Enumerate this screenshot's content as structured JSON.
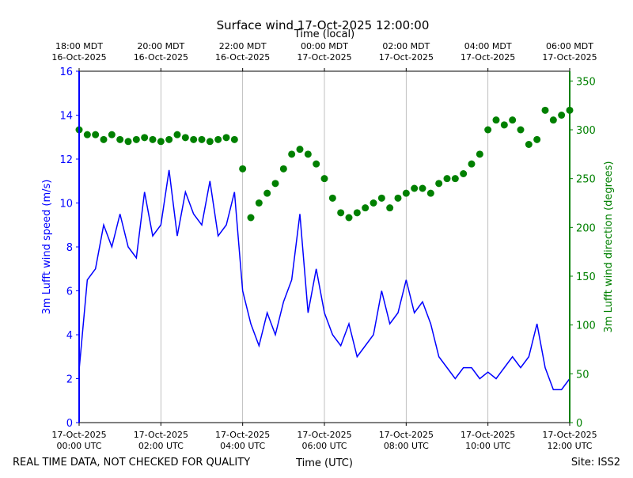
{
  "chart_data": {
    "type": "line+scatter",
    "title": "Surface wind 17-Oct-2025 12:00:00",
    "xlabel": "Time (UTC)",
    "x2label": "Time (local)",
    "ylabel": "3m Lufft wind speed (m/s)",
    "y2label": "3m Lufft wind direction (degrees)",
    "footer_left": "REAL TIME DATA, NOT CHECKED FOR QUALITY",
    "footer_right": "Site: ISS2",
    "xlim": [
      0,
      12
    ],
    "xticks": [
      {
        "value": 0,
        "label": [
          "17-Oct-2025",
          "00:00 UTC"
        ]
      },
      {
        "value": 2,
        "label": [
          "17-Oct-2025",
          "02:00 UTC"
        ]
      },
      {
        "value": 4,
        "label": [
          "17-Oct-2025",
          "04:00 UTC"
        ]
      },
      {
        "value": 6,
        "label": [
          "17-Oct-2025",
          "06:00 UTC"
        ]
      },
      {
        "value": 8,
        "label": [
          "17-Oct-2025",
          "08:00 UTC"
        ]
      },
      {
        "value": 10,
        "label": [
          "17-Oct-2025",
          "10:00 UTC"
        ]
      },
      {
        "value": 12,
        "label": [
          "17-Oct-2025",
          "12:00 UTC"
        ]
      }
    ],
    "x2ticks": [
      {
        "value": 0,
        "label": [
          "18:00 MDT",
          "16-Oct-2025"
        ]
      },
      {
        "value": 2,
        "label": [
          "20:00 MDT",
          "16-Oct-2025"
        ]
      },
      {
        "value": 4,
        "label": [
          "22:00 MDT",
          "16-Oct-2025"
        ]
      },
      {
        "value": 6,
        "label": [
          "00:00 MDT",
          "17-Oct-2025"
        ]
      },
      {
        "value": 8,
        "label": [
          "02:00 MDT",
          "17-Oct-2025"
        ]
      },
      {
        "value": 10,
        "label": [
          "04:00 MDT",
          "17-Oct-2025"
        ]
      },
      {
        "value": 12,
        "label": [
          "06:00 MDT",
          "17-Oct-2025"
        ]
      }
    ],
    "ylim": [
      0,
      16
    ],
    "yticks": [
      0,
      2,
      4,
      6,
      8,
      10,
      12,
      14,
      16
    ],
    "y2lim": [
      0,
      360
    ],
    "y2ticks": [
      0,
      50,
      100,
      150,
      200,
      250,
      300,
      350
    ],
    "grid": "x",
    "x": [
      0,
      0.2,
      0.4,
      0.6,
      0.8,
      1,
      1.2,
      1.4,
      1.6,
      1.8,
      2,
      2.2,
      2.4,
      2.6,
      2.8,
      3,
      3.2,
      3.4,
      3.6,
      3.8,
      4,
      4.2,
      4.4,
      4.6,
      4.8,
      5,
      5.2,
      5.4,
      5.6,
      5.8,
      6,
      6.2,
      6.4,
      6.6,
      6.8,
      7,
      7.2,
      7.4,
      7.6,
      7.8,
      8,
      8.2,
      8.4,
      8.6,
      8.8,
      9,
      9.2,
      9.4,
      9.6,
      9.8,
      10,
      10.2,
      10.4,
      10.6,
      10.8,
      11,
      11.2,
      11.4,
      11.6,
      11.8,
      12
    ],
    "series": [
      {
        "style": "line",
        "color": "#0000ff",
        "axis": "y",
        "values": [
          2.4,
          6.5,
          7.0,
          9.0,
          8.0,
          9.5,
          8.0,
          7.5,
          10.5,
          8.5,
          9.0,
          11.5,
          8.5,
          10.5,
          9.5,
          9.0,
          11.0,
          8.5,
          9.0,
          10.5,
          6.0,
          4.5,
          3.5,
          5.0,
          4.0,
          5.5,
          6.5,
          9.5,
          5.0,
          7.0,
          5.0,
          4.0,
          3.5,
          4.5,
          3.0,
          3.5,
          4.0,
          6.0,
          4.5,
          5.0,
          6.5,
          5.0,
          5.5,
          4.5,
          3.0,
          2.5,
          2.0,
          2.5,
          2.5,
          2.0,
          2.3,
          2.0,
          2.5,
          3.0,
          2.5,
          3.0,
          4.5,
          2.5,
          1.5,
          1.5,
          2.0
        ]
      },
      {
        "style": "scatter",
        "color": "#008000",
        "axis": "y2",
        "values": [
          300,
          295,
          295,
          290,
          295,
          290,
          288,
          290,
          292,
          290,
          288,
          290,
          295,
          292,
          290,
          290,
          288,
          290,
          292,
          290,
          260,
          210,
          225,
          235,
          245,
          260,
          275,
          280,
          275,
          265,
          250,
          230,
          215,
          210,
          215,
          220,
          225,
          230,
          220,
          230,
          235,
          240,
          240,
          235,
          245,
          250,
          250,
          255,
          265,
          275,
          300,
          310,
          305,
          310,
          300,
          285,
          290,
          320,
          310,
          315,
          320
        ]
      }
    ]
  }
}
